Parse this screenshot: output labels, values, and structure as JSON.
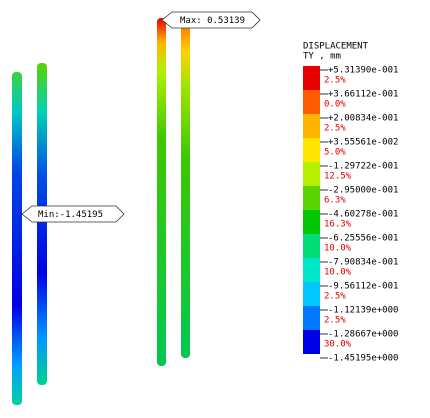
{
  "legend": {
    "title": "DISPLACEMENT",
    "subtitle": "TY , mm",
    "bands": [
      {
        "percent": "2.5%",
        "color": "#e60000"
      },
      {
        "percent": "0.0%",
        "color": "#ff5a00"
      },
      {
        "percent": "2.5%",
        "color": "#ffb400"
      },
      {
        "percent": "5.0%",
        "color": "#ffe600"
      },
      {
        "percent": "12.5%",
        "color": "#b4f000"
      },
      {
        "percent": "6.3%",
        "color": "#5ad200"
      },
      {
        "percent": "16.3%",
        "color": "#00c800"
      },
      {
        "percent": "10.0%",
        "color": "#00dc78"
      },
      {
        "percent": "10.0%",
        "color": "#00e6c8"
      },
      {
        "percent": "2.5%",
        "color": "#00c8ff"
      },
      {
        "percent": "2.5%",
        "color": "#0078ff"
      },
      {
        "percent": "30.0%",
        "color": "#0000e6"
      }
    ],
    "levels": [
      "+5.31390e-001",
      "+3.66112e-001",
      "+2.00834e-001",
      "+3.55561e-002",
      "-1.29722e-001",
      "-2.95000e-001",
      "-4.60278e-001",
      "-6.25556e-001",
      "-7.90834e-001",
      "-9.56112e-001",
      "-1.12139e+000",
      "-1.28667e+000",
      "-1.45195e+000"
    ]
  },
  "annotations": {
    "max": "Max: 0.53139",
    "min": "Min:-1.45195"
  }
}
